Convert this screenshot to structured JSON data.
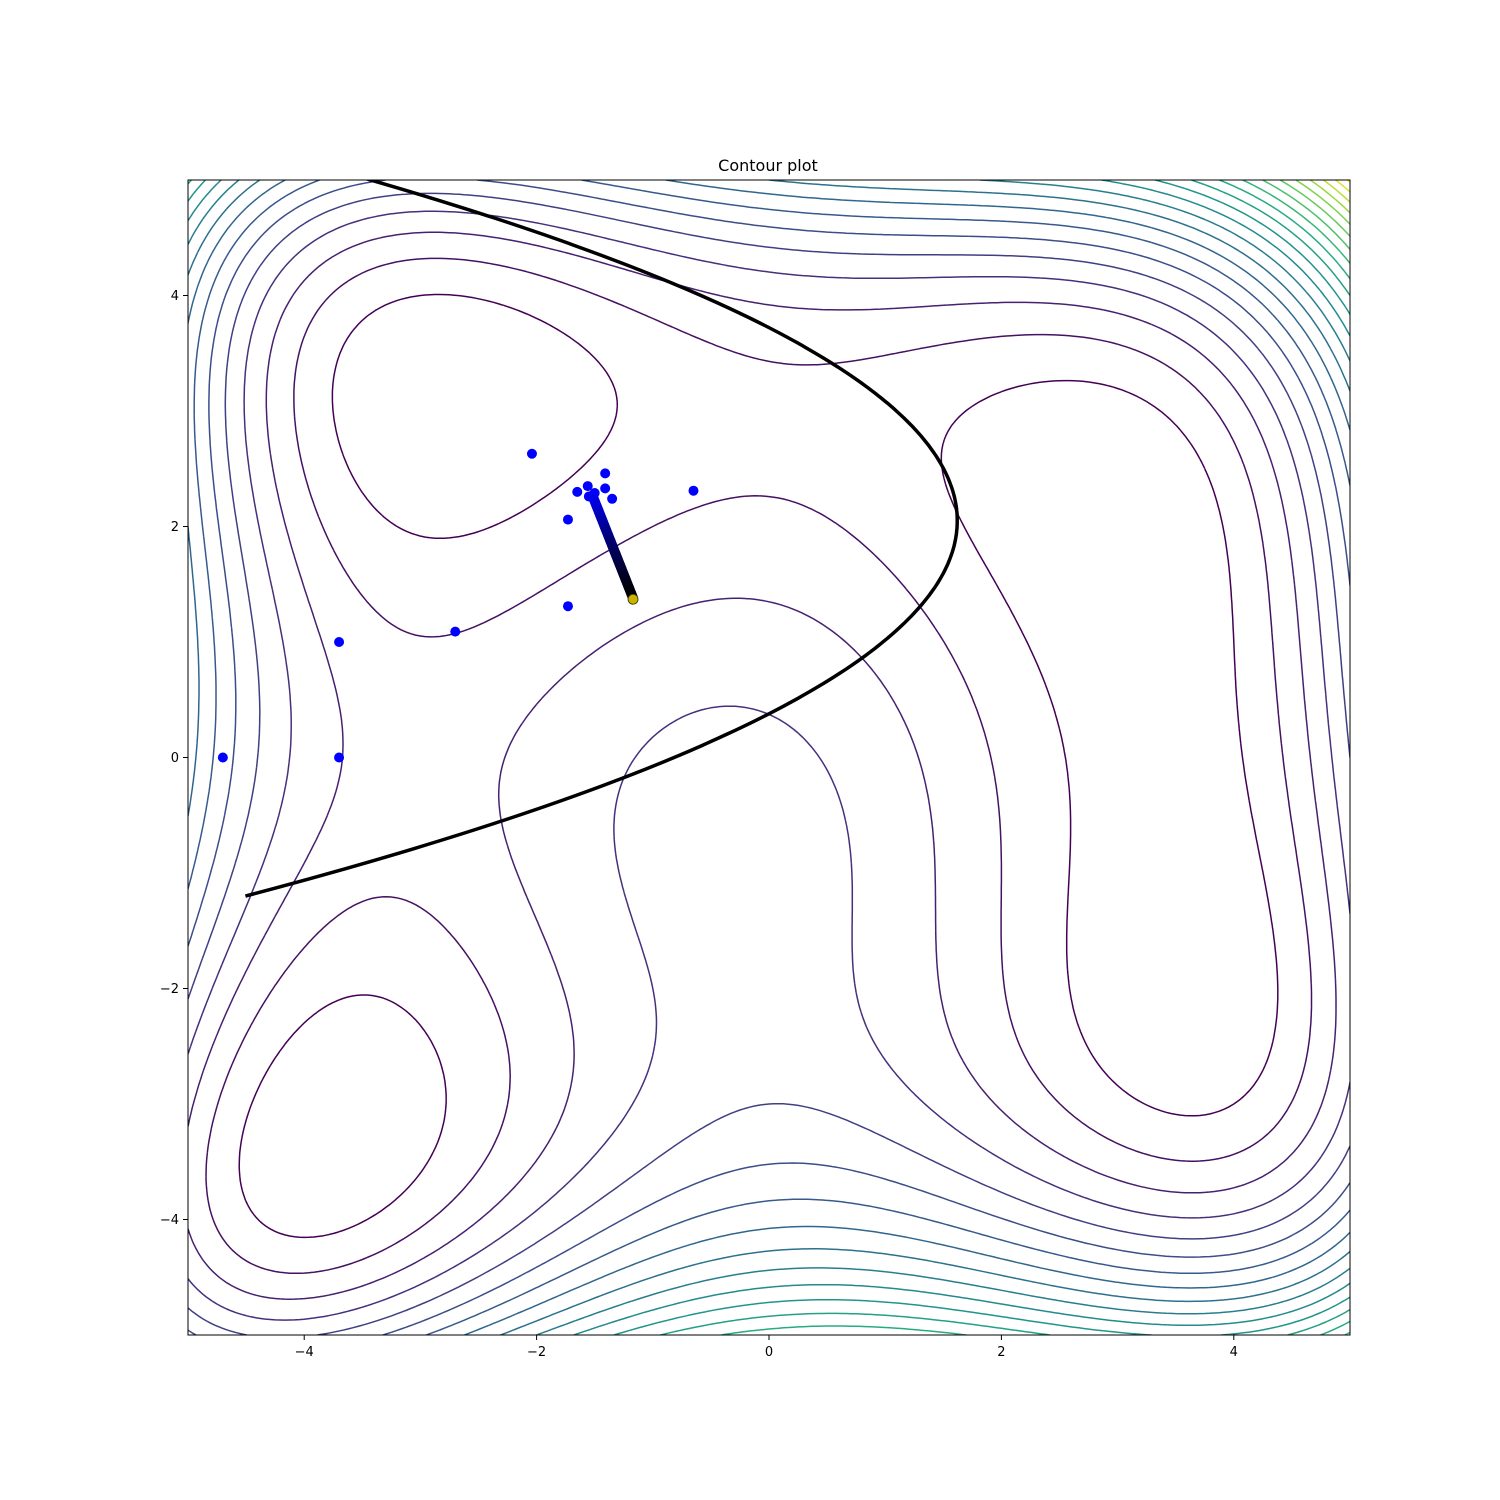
{
  "chart_data": {
    "type": "scatter",
    "title": "Contour plot",
    "xlabel": "",
    "ylabel": "",
    "xlim": [
      -5,
      5
    ],
    "ylim": [
      -5,
      5
    ],
    "x_ticks": [
      -4,
      -2,
      0,
      2,
      4
    ],
    "y_ticks": [
      -4,
      -2,
      0,
      2,
      4
    ],
    "x_tick_labels": [
      "−4",
      "−2",
      "0",
      "2",
      "4"
    ],
    "y_tick_labels": [
      "−4",
      "−2",
      "0",
      "2",
      "4"
    ],
    "grid": false,
    "legend": "none",
    "contours": {
      "function": "(x^2 + y - 11)^2 + (x + y^2 - 7)^2",
      "colormap": "viridis",
      "level_step": 40,
      "first_level": 40
    },
    "boundary_curve": {
      "description": "parabola x = 1.62 - 0.58*(y - 2.05)^2",
      "vertex": [
        1.62,
        2.05
      ],
      "coefficient": 0.58,
      "color": "#000000"
    },
    "series": [
      {
        "marker_color": "#0000ff",
        "points": [
          [
            -4.7,
            0.0
          ],
          [
            -3.7,
            0.0
          ],
          [
            -3.7,
            1.0
          ],
          [
            -2.7,
            1.09
          ],
          [
            -2.04,
            2.63
          ],
          [
            -1.73,
            2.06
          ],
          [
            -1.73,
            1.31
          ],
          [
            -1.65,
            2.3
          ],
          [
            -1.56,
            2.35
          ],
          [
            -1.55,
            2.26
          ],
          [
            -1.5,
            2.29
          ],
          [
            -1.41,
            2.46
          ],
          [
            -1.41,
            2.33
          ],
          [
            -1.35,
            2.24
          ],
          [
            -0.65,
            2.31
          ]
        ]
      },
      {
        "marker_color": "gradient #0000ff to #000000",
        "trajectory_start": [
          -1.52,
          2.27
        ],
        "trajectory_end": [
          -1.17,
          1.38
        ]
      },
      {
        "marker_color": "#c8b400",
        "points": [
          [
            -1.17,
            1.37
          ]
        ]
      }
    ]
  }
}
